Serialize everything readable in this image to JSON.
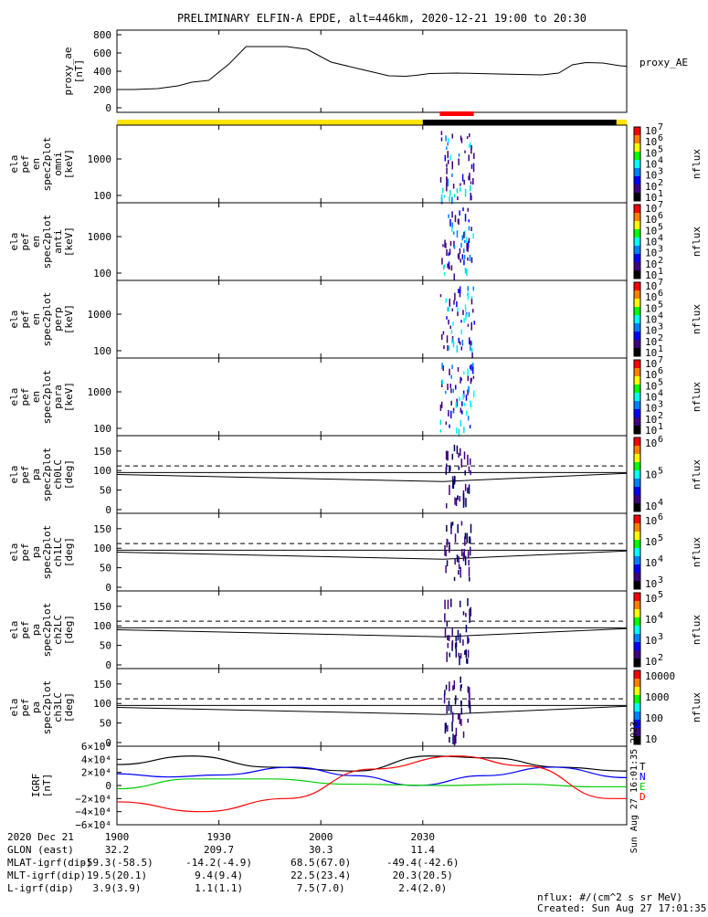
{
  "chart_data": {
    "type": "line",
    "title": "PRELIMINARY ELFIN-A EPDE, alt=446km, 2020-12-21 19:00 to 20:30",
    "proxy_ae": {
      "ylabel": "proxy_ae\n[nT]",
      "legend": "proxy_AE",
      "yticks": [
        0,
        200,
        400,
        600,
        800
      ],
      "ylim": [
        -50,
        850
      ],
      "points": [
        [
          0,
          200
        ],
        [
          5,
          200
        ],
        [
          12,
          210
        ],
        [
          18,
          240
        ],
        [
          22,
          280
        ],
        [
          27,
          300
        ],
        [
          33,
          480
        ],
        [
          38,
          670
        ],
        [
          50,
          670
        ],
        [
          56,
          640
        ],
        [
          63,
          500
        ],
        [
          72,
          420
        ],
        [
          80,
          350
        ],
        [
          85,
          345
        ],
        [
          88,
          355
        ],
        [
          92,
          375
        ],
        [
          100,
          380
        ],
        [
          112,
          370
        ],
        [
          125,
          360
        ],
        [
          130,
          380
        ],
        [
          134,
          470
        ],
        [
          138,
          495
        ],
        [
          143,
          490
        ],
        [
          148,
          460
        ],
        [
          150,
          455
        ]
      ]
    },
    "status_bar": {
      "segments": [
        {
          "from": 0,
          "to": 90,
          "color": "#ffe400"
        },
        {
          "from": 90,
          "to": 147,
          "color": "#000000"
        },
        {
          "from": 147,
          "to": 150,
          "color": "#ffe400"
        }
      ],
      "marker": {
        "from": 95,
        "to": 105,
        "color": "#ff0000"
      }
    },
    "energy_panels": [
      {
        "ylabel": [
          "ela",
          "pef",
          "en",
          "spec2plot",
          "omni",
          "[keV]"
        ],
        "yticks": [
          "1000",
          "100"
        ],
        "cbar_ticks": [
          "10",
          "10",
          "10",
          "10",
          "10",
          "10",
          "10"
        ],
        "cbar_exps": [
          "7",
          "6",
          "5",
          "4",
          "3",
          "2",
          "1"
        ],
        "cbar_label": "nflux"
      },
      {
        "ylabel": [
          "ela",
          "pef",
          "en",
          "spec2plot",
          "anti",
          "[keV]"
        ],
        "yticks": [
          "1000",
          "100"
        ],
        "cbar_ticks": [
          "10",
          "10",
          "10",
          "10",
          "10",
          "10",
          "10"
        ],
        "cbar_exps": [
          "7",
          "6",
          "5",
          "4",
          "3",
          "2",
          "1"
        ],
        "cbar_label": "nflux"
      },
      {
        "ylabel": [
          "ela",
          "pef",
          "en",
          "spec2plot",
          "perp",
          "[keV]"
        ],
        "yticks": [
          "1000",
          "100"
        ],
        "cbar_ticks": [
          "10",
          "10",
          "10",
          "10",
          "10",
          "10",
          "10"
        ],
        "cbar_exps": [
          "7",
          "6",
          "5",
          "4",
          "3",
          "2",
          "1"
        ],
        "cbar_label": "nflux"
      },
      {
        "ylabel": [
          "ela",
          "pef",
          "en",
          "spec2plot",
          "para",
          "[keV]"
        ],
        "yticks": [
          "1000",
          "100"
        ],
        "cbar_ticks": [
          "10",
          "10",
          "10",
          "10",
          "10",
          "10",
          "10"
        ],
        "cbar_exps": [
          "7",
          "6",
          "5",
          "4",
          "3",
          "2",
          "1"
        ],
        "cbar_label": "nflux"
      }
    ],
    "pitch_panels": [
      {
        "ylabel": [
          "ela",
          "pef",
          "pa",
          "spec2plot",
          "ch0LC",
          "[deg]"
        ],
        "yticks": [
          "150",
          "100",
          "50",
          "0"
        ],
        "cbar_ticks": [
          "10",
          "10",
          "10"
        ],
        "cbar_exps": [
          "6",
          "5",
          "4"
        ],
        "cbar_label": "nflux"
      },
      {
        "ylabel": [
          "ela",
          "pef",
          "pa",
          "spec2plot",
          "ch1LC",
          "[deg]"
        ],
        "yticks": [
          "150",
          "100",
          "50",
          "0"
        ],
        "cbar_ticks": [
          "10",
          "10",
          "10",
          "10"
        ],
        "cbar_exps": [
          "6",
          "5",
          "4",
          "3"
        ],
        "cbar_label": "nflux"
      },
      {
        "ylabel": [
          "ela",
          "pef",
          "pa",
          "spec2plot",
          "ch2LC",
          "[deg]"
        ],
        "yticks": [
          "150",
          "100",
          "50",
          "0"
        ],
        "cbar_ticks": [
          "10",
          "10",
          "10",
          "10"
        ],
        "cbar_exps": [
          "5",
          "4",
          "3",
          "2"
        ],
        "cbar_label": "nflux"
      },
      {
        "ylabel": [
          "ela",
          "pef",
          "pa",
          "spec2plot",
          "ch3LC",
          "[deg]"
        ],
        "yticks": [
          "150",
          "100",
          "50",
          "0"
        ],
        "cbar_ticks": [
          "10000",
          "1000",
          "100",
          "10"
        ],
        "cbar_exps": [
          "",
          "",
          "",
          ""
        ],
        "cbar_label": "nflux"
      }
    ],
    "pitch_lines": {
      "dashed_deg": 112,
      "lower_curve": [
        [
          0,
          90
        ],
        [
          96,
          72
        ],
        [
          150,
          93
        ]
      ],
      "upper_hline_deg": 95
    },
    "igrf": {
      "ylabel": "IGRF\n[nT]",
      "yticks": [
        "6×10⁴",
        "4×10⁴",
        "2×10⁴",
        "0",
        "−2×10⁴",
        "−4×10⁴",
        "−6×10⁴"
      ],
      "ylim": [
        -60000,
        60000
      ],
      "series": [
        {
          "name": "T",
          "color": "#000000",
          "points": [
            [
              0,
              32000
            ],
            [
              22,
              45000
            ],
            [
              45,
              28000
            ],
            [
              70,
              22000
            ],
            [
              92,
              45000
            ],
            [
              110,
              42000
            ],
            [
              130,
              28000
            ],
            [
              150,
              22000
            ]
          ]
        },
        {
          "name": "N",
          "color": "#0000ff",
          "points": [
            [
              0,
              18000
            ],
            [
              15,
              13000
            ],
            [
              30,
              16000
            ],
            [
              52,
              28000
            ],
            [
              70,
              15000
            ],
            [
              88,
              0
            ],
            [
              108,
              15000
            ],
            [
              128,
              28000
            ],
            [
              150,
              12000
            ]
          ]
        },
        {
          "name": "E",
          "color": "#00cc00",
          "points": [
            [
              0,
              -5000
            ],
            [
              22,
              10000
            ],
            [
              45,
              10000
            ],
            [
              68,
              2000
            ],
            [
              95,
              0
            ],
            [
              120,
              2000
            ],
            [
              140,
              -2000
            ],
            [
              150,
              -2000
            ]
          ]
        },
        {
          "name": "D",
          "color": "#ff0000",
          "points": [
            [
              0,
              -25000
            ],
            [
              25,
              -40000
            ],
            [
              50,
              -20000
            ],
            [
              75,
              25000
            ],
            [
              100,
              45000
            ],
            [
              120,
              30000
            ],
            [
              145,
              -20000
            ],
            [
              150,
              -20000
            ]
          ]
        }
      ]
    },
    "xaxis": {
      "ticks": [
        {
          "t": 0,
          "label": "1900"
        },
        {
          "t": 30,
          "label": "1930"
        },
        {
          "t": 60,
          "label": "2000"
        },
        {
          "t": 90,
          "label": "2030"
        }
      ],
      "date_row_label": "2020 Dec 21",
      "rows": [
        {
          "label": "GLON (east)",
          "values": [
            "32.2",
            "209.7",
            "30.3",
            "11.4"
          ]
        },
        {
          "label": "MLAT-igrf(dip)",
          "values": [
            "-59.3(-58.5)",
            "-14.2(-4.9)",
            "68.5(67.0)",
            "-49.4(-42.6)"
          ]
        },
        {
          "label": "MLT-igrf(dip)",
          "values": [
            "19.5(20.1)",
            "9.4(9.4)",
            "22.5(23.4)",
            "20.3(20.5)"
          ]
        },
        {
          "label": "L-igrf(dip)",
          "values": "3.9(3.9)|1.1(1.1)|7.5(7.0)|2.4(2.0)"
        }
      ]
    },
    "footer": {
      "units": "nflux: #/(cm^2 s sr MeV)",
      "created": "Created: Sun Aug 27 17:01:35 2023",
      "side_stamp": "Sun Aug 27 16:01:35 2023"
    }
  }
}
